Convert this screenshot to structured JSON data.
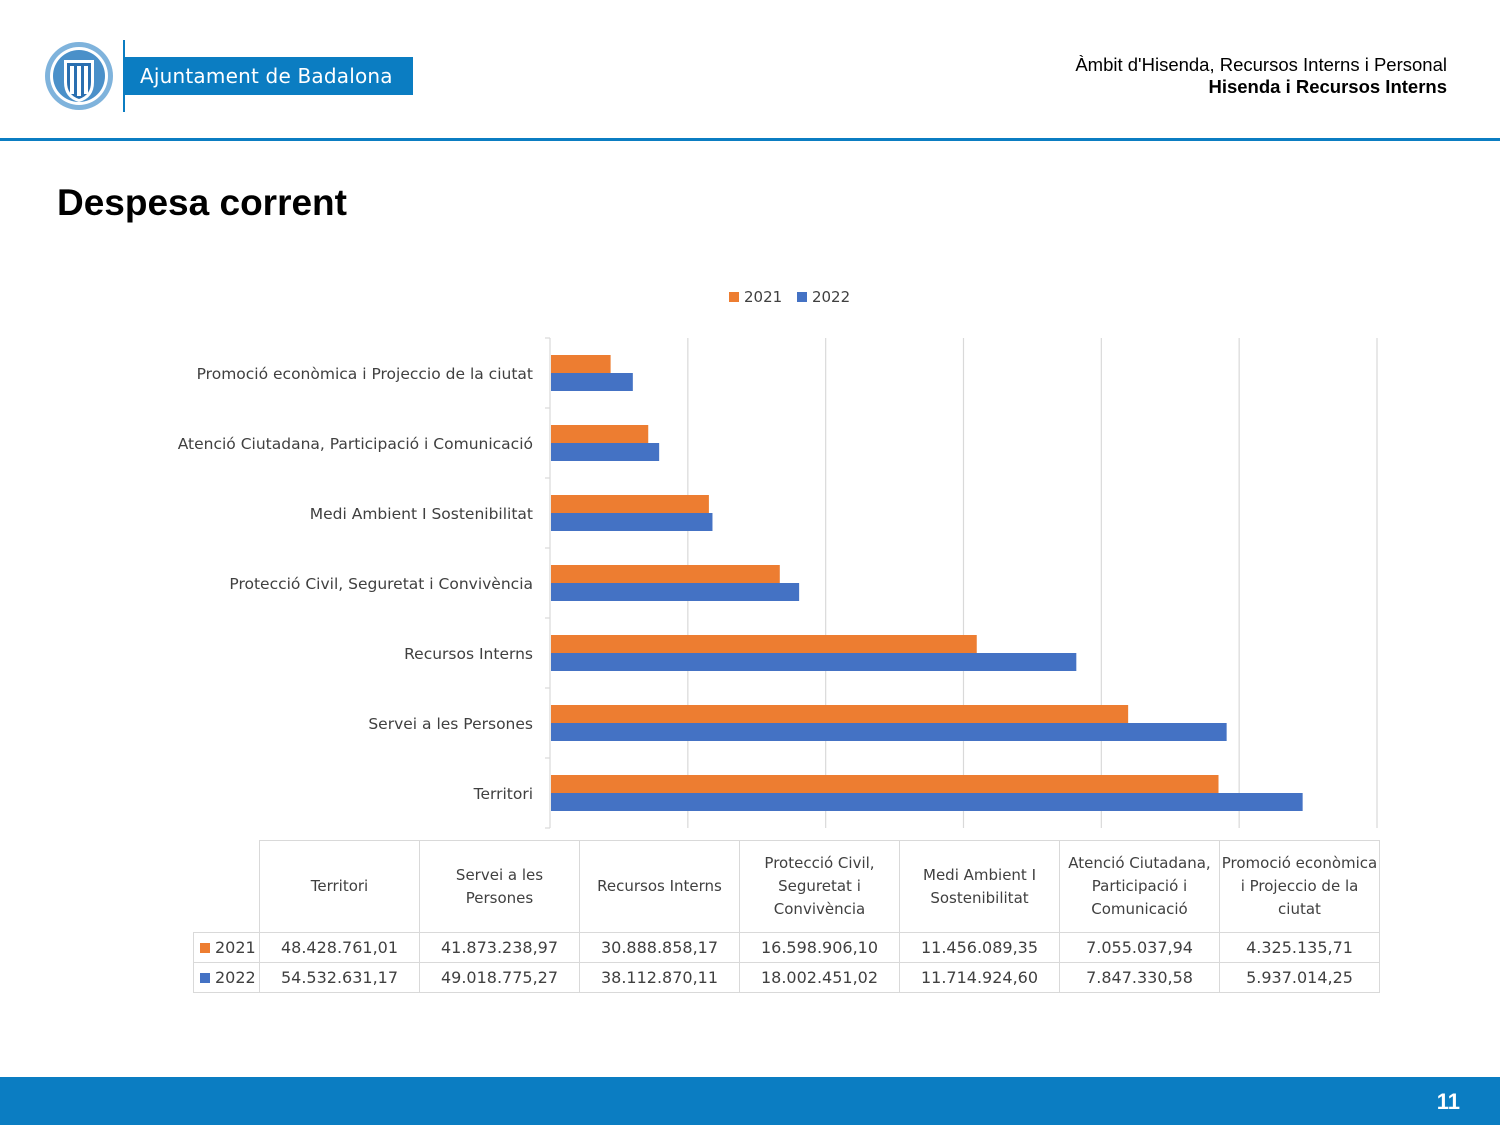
{
  "header": {
    "logo_text": "Ajuntament de Badalona",
    "dept_line1": "Àmbit d'Hisenda, Recursos Interns i Personal",
    "dept_line2": "Hisenda i Recursos Interns"
  },
  "page": {
    "title": "Despesa corrent",
    "number": "11"
  },
  "colors": {
    "brand": "#0b7dc2",
    "series_2021": "#ed7d31",
    "series_2022": "#4472c4",
    "grid": "#d9d9d9"
  },
  "chart_data": {
    "type": "bar",
    "orientation": "horizontal",
    "title": "",
    "categories": [
      "Territori",
      "Servei a les Persones",
      "Recursos Interns",
      "Protecció Civil, Seguretat i Convivència",
      "Medi Ambient I Sostenibilitat",
      "Atenció Ciutadana, Participació i Comunicació",
      "Promoció econòmica i Projeccio de la ciutat"
    ],
    "series": [
      {
        "name": "2021",
        "values": [
          48428761.01,
          41873238.97,
          30888858.17,
          16598906.1,
          11456089.35,
          7055037.94,
          4325135.71
        ]
      },
      {
        "name": "2022",
        "values": [
          54532631.17,
          49018775.27,
          38112870.11,
          18002451.02,
          11714924.6,
          7847330.58,
          5937014.25
        ]
      }
    ],
    "xlim": [
      0,
      60000000
    ],
    "grid": true,
    "legend_position": "top",
    "data_table": {
      "headers": [
        "Territori",
        "Servei a les Persones",
        "Recursos Interns",
        "Protecció Civil, Seguretat i Convivència",
        "Medi Ambient I Sostenibilitat",
        "Atenció Ciutadana, Participació i Comunicació",
        "Promoció econòmica i Projeccio de la ciutat"
      ],
      "rows": [
        {
          "series": "2021",
          "cells": [
            "48.428.761,01",
            "41.873.238,97",
            "30.888.858,17",
            "16.598.906,10",
            "11.456.089,35",
            "7.055.037,94",
            "4.325.135,71"
          ]
        },
        {
          "series": "2022",
          "cells": [
            "54.532.631,17",
            "49.018.775,27",
            "38.112.870,11",
            "18.002.451,02",
            "11.714.924,60",
            "7.847.330,58",
            "5.937.014,25"
          ]
        }
      ]
    }
  }
}
